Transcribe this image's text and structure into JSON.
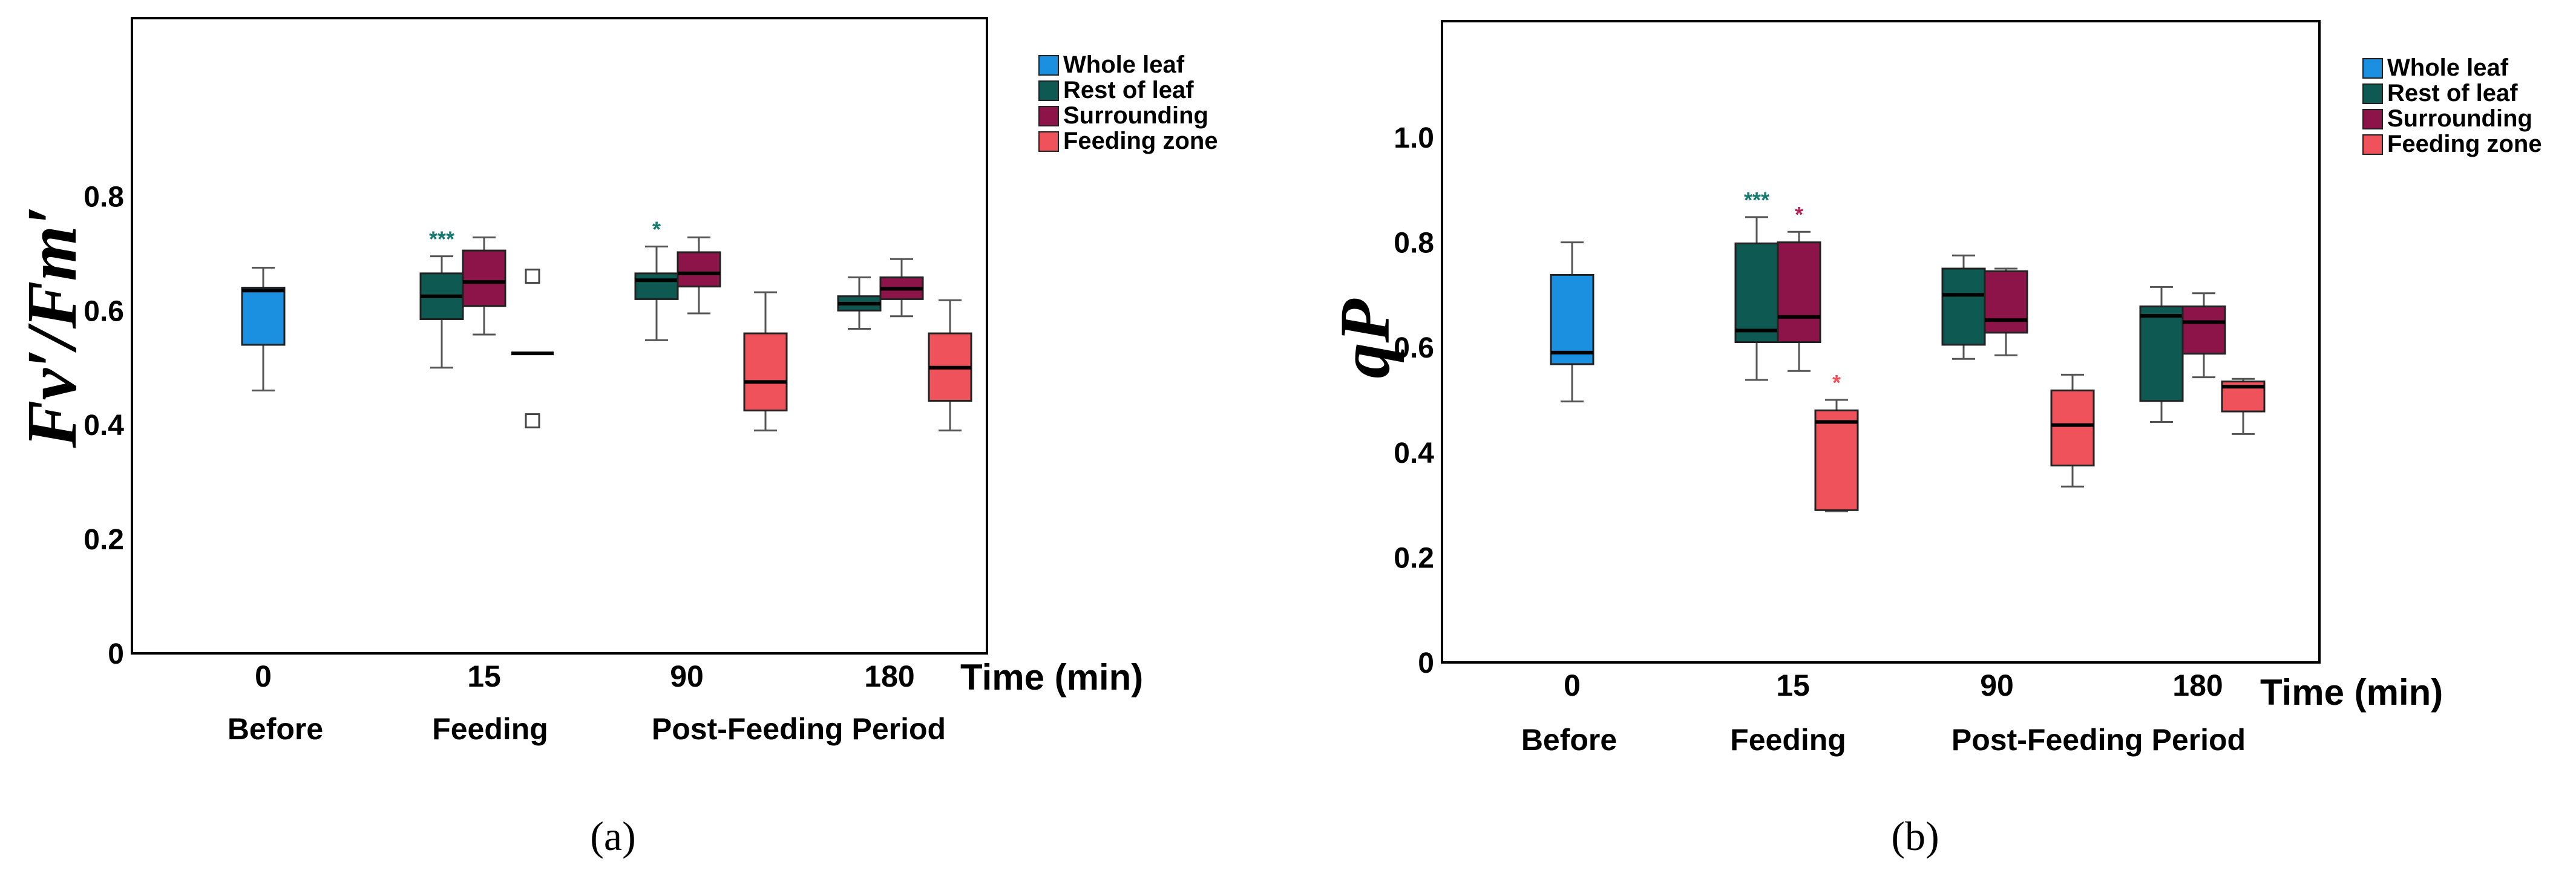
{
  "colors": {
    "whole_leaf": "#1b8fe0",
    "rest_of_leaf": "#0e5a52",
    "surrounding": "#8c1448",
    "feeding_zone": "#f0525b",
    "asterisk_teal": "#157a70",
    "asterisk_crimson": "#b22455",
    "asterisk_red": "#f0525b"
  },
  "chart_data": [
    {
      "type": "boxplot",
      "panel_label": "(a)",
      "ylabel": "Fv′/Fm′",
      "xlabel": "Time (min)",
      "ylim": [
        0,
        0.88
      ],
      "yticks": [
        0,
        0.2,
        0.4,
        0.6,
        0.8
      ],
      "ytick_labels": [
        "0",
        "0.2",
        "0.4",
        "0.6",
        "0.8"
      ],
      "categories": [
        "0",
        "15",
        "90",
        "180"
      ],
      "period_labels": [
        "Before",
        "Feeding",
        "Post-Feeding Period"
      ],
      "legend": {
        "position": "top-right",
        "entries": [
          "Whole leaf",
          "Rest of leaf",
          "Surrounding",
          "Feeding zone"
        ]
      },
      "series": [
        {
          "name": "Whole leaf",
          "color_key": "whole_leaf",
          "boxes": [
            {
              "category": "0",
              "min": 0.46,
              "q1": 0.54,
              "median": 0.635,
              "q3": 0.64,
              "max": 0.675
            }
          ]
        },
        {
          "name": "Rest of leaf",
          "color_key": "rest_of_leaf",
          "boxes": [
            {
              "category": "15",
              "min": 0.5,
              "q1": 0.585,
              "median": 0.625,
              "q3": 0.665,
              "max": 0.695,
              "sig": "***"
            },
            {
              "category": "90",
              "min": 0.548,
              "q1": 0.62,
              "median": 0.653,
              "q3": 0.665,
              "max": 0.712,
              "sig": "*"
            },
            {
              "category": "180",
              "min": 0.568,
              "q1": 0.6,
              "median": 0.612,
              "q3": 0.625,
              "max": 0.658
            }
          ]
        },
        {
          "name": "Surrounding",
          "color_key": "surrounding",
          "boxes": [
            {
              "category": "15",
              "min": 0.558,
              "q1": 0.608,
              "median": 0.65,
              "q3": 0.705,
              "max": 0.728
            },
            {
              "category": "90",
              "min": 0.595,
              "q1": 0.642,
              "median": 0.665,
              "q3": 0.702,
              "max": 0.728
            },
            {
              "category": "180",
              "min": 0.59,
              "q1": 0.62,
              "median": 0.638,
              "q3": 0.658,
              "max": 0.69
            }
          ]
        },
        {
          "name": "Feeding zone",
          "color_key": "feeding_zone",
          "boxes": [
            {
              "category": "15",
              "median": 0.525,
              "outliers": [
                0.66,
                0.407
              ]
            },
            {
              "category": "90",
              "min": 0.39,
              "q1": 0.425,
              "median": 0.475,
              "q3": 0.56,
              "max": 0.632
            },
            {
              "category": "180",
              "min": 0.39,
              "q1": 0.442,
              "median": 0.5,
              "q3": 0.56,
              "max": 0.618
            }
          ]
        }
      ]
    },
    {
      "type": "boxplot",
      "panel_label": "(b)",
      "ylabel": "qP",
      "xlabel": "Time (min)",
      "ylim": [
        0,
        1.1
      ],
      "yticks": [
        0,
        0.2,
        0.4,
        0.6,
        0.8,
        1.0
      ],
      "ytick_labels": [
        "0",
        "0.2",
        "0.4",
        "0.6",
        "0.8",
        "1.0"
      ],
      "categories": [
        "0",
        "15",
        "90",
        "180"
      ],
      "period_labels": [
        "Before",
        "Feeding",
        "Post-Feeding Period"
      ],
      "legend": {
        "position": "top-right",
        "entries": [
          "Whole leaf",
          "Rest of leaf",
          "Surrounding",
          "Feeding zone"
        ]
      },
      "series": [
        {
          "name": "Whole leaf",
          "color_key": "whole_leaf",
          "boxes": [
            {
              "category": "0",
              "min": 0.497,
              "q1": 0.568,
              "median": 0.59,
              "q3": 0.738,
              "max": 0.8
            }
          ]
        },
        {
          "name": "Rest of leaf",
          "color_key": "rest_of_leaf",
          "boxes": [
            {
              "category": "15",
              "min": 0.538,
              "q1": 0.61,
              "median": 0.632,
              "q3": 0.798,
              "max": 0.848,
              "sig": "***"
            },
            {
              "category": "90",
              "min": 0.578,
              "q1": 0.605,
              "median": 0.7,
              "q3": 0.75,
              "max": 0.775
            },
            {
              "category": "180",
              "min": 0.458,
              "q1": 0.498,
              "median": 0.66,
              "q3": 0.678,
              "max": 0.715
            }
          ]
        },
        {
          "name": "Surrounding",
          "color_key": "surrounding",
          "boxes": [
            {
              "category": "15",
              "min": 0.555,
              "q1": 0.61,
              "median": 0.658,
              "q3": 0.8,
              "max": 0.82,
              "sig": "*"
            },
            {
              "category": "90",
              "min": 0.585,
              "q1": 0.628,
              "median": 0.652,
              "q3": 0.745,
              "max": 0.75
            },
            {
              "category": "180",
              "min": 0.543,
              "q1": 0.588,
              "median": 0.648,
              "q3": 0.678,
              "max": 0.703
            }
          ]
        },
        {
          "name": "Feeding zone",
          "color_key": "feeding_zone",
          "boxes": [
            {
              "category": "15",
              "min": 0.288,
              "q1": 0.29,
              "median": 0.458,
              "q3": 0.48,
              "max": 0.5,
              "sig": "*"
            },
            {
              "category": "90",
              "min": 0.335,
              "q1": 0.375,
              "median": 0.452,
              "q3": 0.518,
              "max": 0.548
            },
            {
              "category": "180",
              "min": 0.435,
              "q1": 0.478,
              "median": 0.525,
              "q3": 0.535,
              "max": 0.54
            }
          ]
        }
      ]
    }
  ]
}
